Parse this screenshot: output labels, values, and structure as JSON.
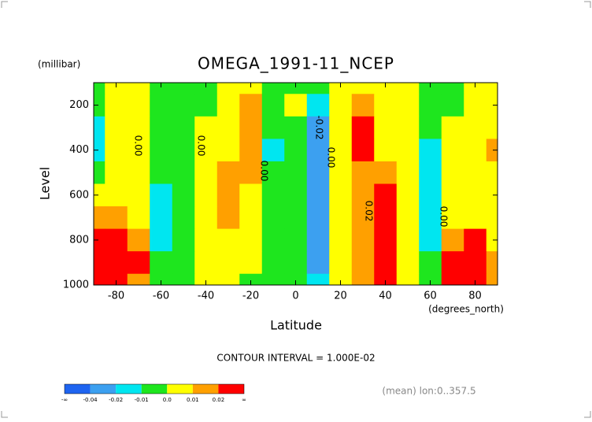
{
  "chart_data": {
    "type": "contour",
    "title": "OMEGA_1991-11_NCEP",
    "y_unit": "(millibar)",
    "y_label": "Level",
    "x_label": "Latitude",
    "x_unit": "(degrees_north)",
    "contour_interval": "CONTOUR INTERVAL = 1.000E-02",
    "footnote": "(mean) lon:0..357.5",
    "xlim": [
      -90,
      90
    ],
    "ylim": [
      1000,
      100
    ],
    "xticks": [
      -80,
      -60,
      -40,
      -20,
      0,
      20,
      40,
      60,
      80
    ],
    "yticks": [
      200,
      400,
      600,
      800,
      1000
    ],
    "x": [
      -90,
      -80,
      -70,
      -60,
      -50,
      -40,
      -30,
      -20,
      -10,
      0,
      10,
      20,
      30,
      40,
      50,
      60,
      70,
      80,
      90
    ],
    "y": [
      100,
      200,
      300,
      400,
      500,
      600,
      700,
      800,
      900,
      1000
    ],
    "z": [
      [
        -0.005,
        0.005,
        0.005,
        -0.005,
        -0.005,
        -0.005,
        0.005,
        0.005,
        -0.005,
        -0.005,
        -0.005,
        0.005,
        0.005,
        0.005,
        0.005,
        -0.005,
        -0.005,
        0.005,
        0.005
      ],
      [
        -0.005,
        0.005,
        0.005,
        -0.005,
        -0.005,
        -0.005,
        0.005,
        0.015,
        -0.005,
        0.005,
        -0.015,
        0.005,
        0.015,
        0.005,
        0.005,
        -0.005,
        -0.005,
        0.005,
        0.005
      ],
      [
        -0.015,
        0.005,
        0.005,
        -0.005,
        -0.005,
        0.005,
        0.005,
        0.015,
        -0.005,
        -0.005,
        -0.025,
        0.005,
        0.025,
        0.005,
        0.005,
        -0.005,
        0.005,
        0.005,
        0.005
      ],
      [
        -0.015,
        0.005,
        0.005,
        -0.005,
        -0.005,
        0.005,
        0.005,
        0.015,
        -0.015,
        -0.005,
        -0.03,
        0.005,
        0.025,
        0.005,
        0.005,
        -0.015,
        0.005,
        0.005,
        0.015
      ],
      [
        -0.005,
        0.005,
        0.005,
        -0.005,
        -0.005,
        0.005,
        0.015,
        0.015,
        -0.005,
        -0.005,
        -0.03,
        0.005,
        0.015,
        0.015,
        0.005,
        -0.015,
        0.005,
        0.005,
        0.005
      ],
      [
        0.005,
        0.005,
        0.005,
        -0.015,
        -0.005,
        0.005,
        0.015,
        0.005,
        -0.005,
        -0.005,
        -0.03,
        0.005,
        0.015,
        0.025,
        0.005,
        -0.015,
        0.005,
        0.005,
        0.005
      ],
      [
        0.015,
        0.015,
        0.005,
        -0.015,
        -0.005,
        0.005,
        0.015,
        0.005,
        -0.005,
        -0.005,
        -0.03,
        0.005,
        0.015,
        0.025,
        0.005,
        -0.015,
        0.005,
        0.005,
        0.005
      ],
      [
        0.025,
        0.025,
        0.015,
        -0.015,
        -0.005,
        0.005,
        0.005,
        0.005,
        -0.005,
        -0.005,
        -0.03,
        0.005,
        0.015,
        0.025,
        0.005,
        -0.015,
        0.015,
        0.025,
        0.005
      ],
      [
        0.025,
        0.025,
        0.025,
        -0.005,
        -0.005,
        0.005,
        0.005,
        0.005,
        -0.005,
        -0.005,
        -0.025,
        0.005,
        0.015,
        0.025,
        0.005,
        -0.005,
        0.025,
        0.025,
        0.015
      ],
      [
        0.025,
        0.025,
        0.015,
        -0.005,
        -0.005,
        0.005,
        0.005,
        -0.005,
        -0.005,
        -0.005,
        -0.015,
        0.005,
        0.015,
        0.025,
        0.005,
        -0.005,
        0.025,
        0.025,
        0.015
      ]
    ],
    "colors": [
      "#1e64f0",
      "#3ca0f0",
      "#00e6f0",
      "#1ee61e",
      "#ffff00",
      "#ffa000",
      "#ff0000"
    ],
    "colorbar_ticks": [
      "-∞",
      -0.04,
      -0.02,
      -0.01,
      {
        "value": 0,
        "label": "0.0"
      },
      0.01,
      0.02,
      "∞"
    ],
    "annotations": [
      "0.00",
      "0.00",
      "0.00",
      "-0.02",
      "0.00",
      "0.02",
      "0.00"
    ]
  }
}
